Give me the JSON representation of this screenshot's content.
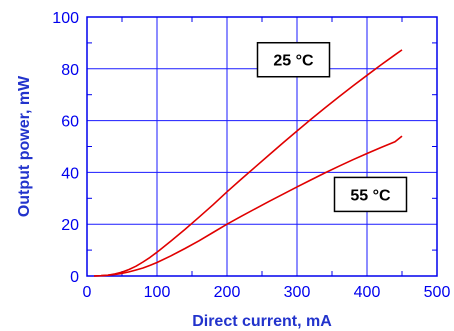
{
  "chart_data": {
    "type": "line",
    "title": "",
    "xlabel": "Direct current, mA",
    "ylabel": "Output power, mW",
    "xlim": [
      0,
      500
    ],
    "ylim": [
      0,
      100
    ],
    "x_ticks": [
      0,
      100,
      200,
      300,
      400,
      500
    ],
    "y_ticks": [
      0,
      20,
      40,
      60,
      80,
      100
    ],
    "grid": true,
    "legend": "none",
    "colors": {
      "series": "#e00000",
      "grid": "#1a1aff",
      "axis": "#0000ee",
      "axis_title": "#2233cc",
      "annotation_border": "#000000"
    },
    "series": [
      {
        "x": [
          10,
          20,
          30,
          40,
          50,
          60,
          70,
          80,
          90,
          100,
          120,
          140,
          160,
          180,
          200,
          220,
          240,
          260,
          280,
          300,
          320,
          340,
          360,
          380,
          400,
          420,
          440,
          450
        ],
        "y": [
          0,
          0.1,
          0.3,
          0.8,
          1.5,
          2.5,
          3.8,
          5.4,
          7.2,
          9.2,
          13.5,
          18,
          22.7,
          27.5,
          32.5,
          37.3,
          42,
          46.7,
          51.4,
          56,
          60.5,
          64.9,
          69.2,
          73.4,
          77.5,
          81.5,
          85.4,
          87.3
        ]
      },
      {
        "x": [
          10,
          20,
          30,
          40,
          50,
          60,
          70,
          80,
          90,
          100,
          120,
          140,
          160,
          180,
          200,
          220,
          240,
          260,
          280,
          300,
          320,
          340,
          360,
          380,
          400,
          420,
          440,
          450
        ],
        "y": [
          0,
          0.1,
          0.3,
          0.6,
          1,
          1.6,
          2.3,
          3.1,
          4.1,
          5.2,
          7.8,
          10.6,
          13.6,
          16.8,
          20,
          23,
          25.9,
          28.8,
          31.6,
          34.4,
          37.1,
          39.8,
          42.4,
          44.9,
          47.3,
          49.6,
          51.8,
          54
        ]
      }
    ],
    "annotations": [
      {
        "text": "25 °C",
        "x": 295,
        "y": 83.5
      },
      {
        "text": "55 °C",
        "x": 405,
        "y": 31.5
      }
    ]
  }
}
